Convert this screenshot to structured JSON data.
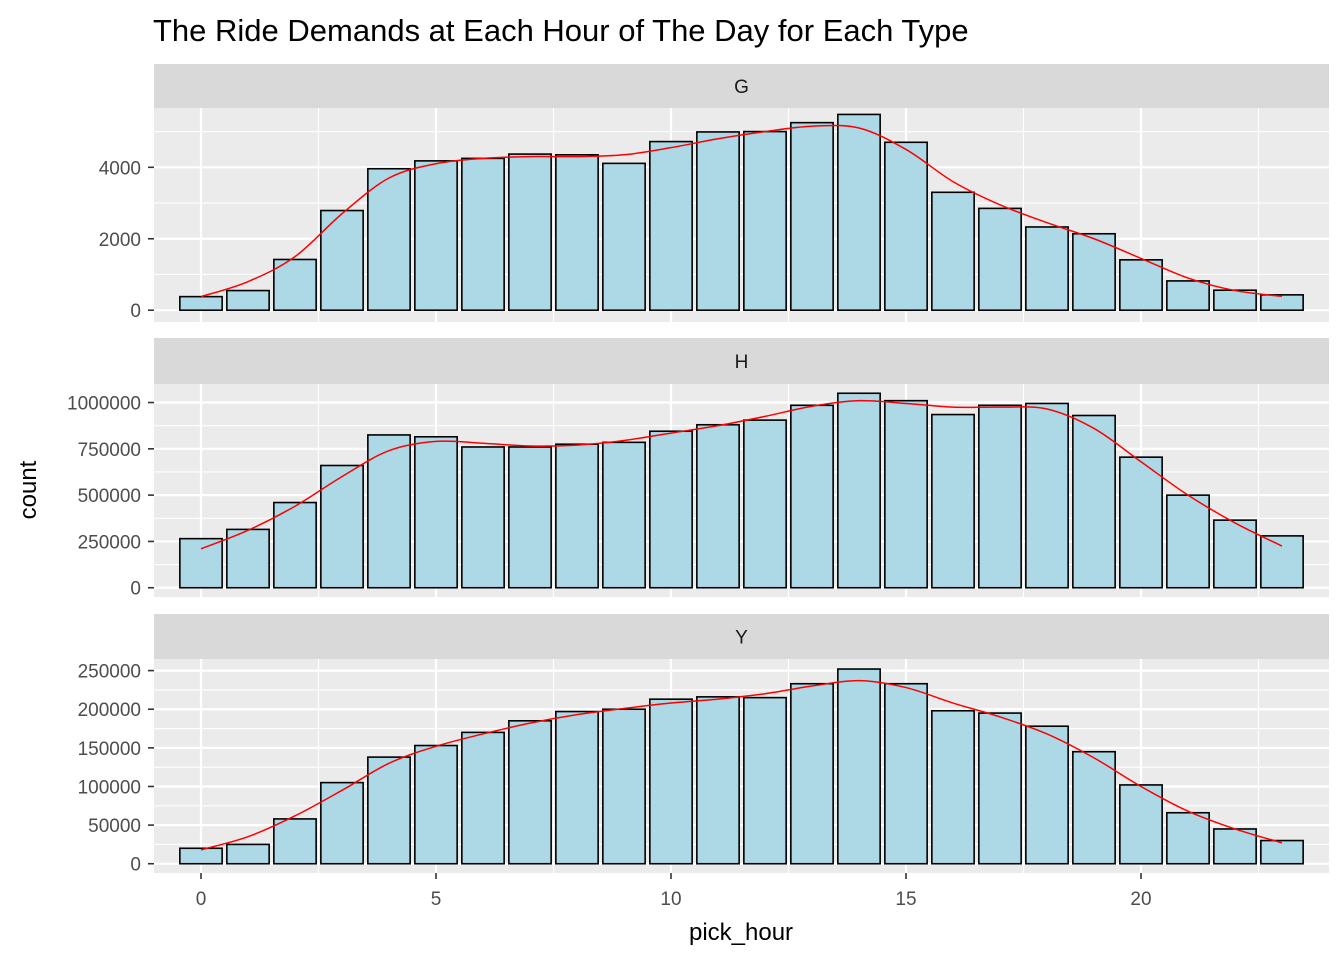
{
  "chart_data": {
    "type": "bar",
    "title": "The Ride Demands at Each Hour of The Day for Each  Type",
    "xlabel": "pick_hour",
    "ylabel": "count",
    "facet_by": "Type",
    "x": [
      0,
      1,
      2,
      3,
      4,
      5,
      6,
      7,
      8,
      9,
      10,
      11,
      12,
      13,
      14,
      15,
      16,
      17,
      18,
      19,
      20,
      21,
      22,
      23
    ],
    "xlim": [
      -1.0,
      24.0
    ],
    "x_ticks": [
      0,
      5,
      10,
      15,
      20
    ],
    "x_tick_labels": [
      "0",
      "5",
      "10",
      "15",
      "20"
    ],
    "grid": true,
    "colors": {
      "bar_fill": "#add8e6",
      "bar_outline": "#000000",
      "smooth_line": "#ff0000",
      "panel_bg": "#ebebeb",
      "strip_bg": "#d9d9d9",
      "grid": "#ffffff"
    },
    "facets": [
      {
        "label": "G",
        "values": [
          380,
          550,
          1420,
          2790,
          3960,
          4180,
          4250,
          4370,
          4350,
          4110,
          4720,
          4990,
          5000,
          5250,
          5480,
          4700,
          3300,
          2850,
          2330,
          2140,
          1410,
          820,
          560,
          430
        ],
        "smooth": [
          380,
          800,
          1500,
          2700,
          3700,
          4100,
          4250,
          4300,
          4300,
          4350,
          4550,
          4800,
          5000,
          5150,
          5100,
          4500,
          3600,
          2950,
          2450,
          2000,
          1450,
          900,
          550,
          390
        ],
        "ylim": [
          -330,
          5660
        ],
        "y_ticks": [
          0,
          2000,
          4000
        ],
        "y_tick_labels": [
          "0",
          "2000",
          "4000"
        ]
      },
      {
        "label": "H",
        "values": [
          265000,
          315000,
          460000,
          660000,
          825000,
          815000,
          760000,
          760000,
          775000,
          785000,
          845000,
          880000,
          905000,
          985000,
          1050000,
          1010000,
          935000,
          985000,
          995000,
          930000,
          705000,
          500000,
          365000,
          280000
        ],
        "smooth": [
          210000,
          310000,
          440000,
          600000,
          740000,
          790000,
          780000,
          765000,
          770000,
          795000,
          835000,
          875000,
          925000,
          980000,
          1010000,
          995000,
          975000,
          975000,
          965000,
          860000,
          680000,
          500000,
          350000,
          225000
        ],
        "ylim": [
          -50000,
          1100000
        ],
        "y_ticks": [
          0,
          250000,
          500000,
          750000,
          1000000
        ],
        "y_tick_labels": [
          "0",
          "250000",
          "500000",
          "750000",
          "1000000"
        ]
      },
      {
        "label": "Y",
        "values": [
          20000,
          25000,
          58000,
          105000,
          138000,
          153000,
          170000,
          185000,
          197000,
          200000,
          213000,
          216000,
          215000,
          233000,
          252000,
          233000,
          198000,
          195000,
          178000,
          145000,
          102000,
          66000,
          45000,
          30000
        ],
        "smooth": [
          18000,
          35000,
          62000,
          95000,
          130000,
          152000,
          168000,
          182000,
          193000,
          201000,
          208000,
          213000,
          220000,
          230000,
          237000,
          228000,
          208000,
          190000,
          168000,
          137000,
          100000,
          68000,
          45000,
          27000
        ],
        "ylim": [
          -12000,
          265000
        ],
        "y_ticks": [
          0,
          50000,
          100000,
          150000,
          200000,
          250000
        ],
        "y_tick_labels": [
          "0",
          "50000",
          "100000",
          "150000",
          "200000",
          "250000"
        ]
      }
    ]
  }
}
